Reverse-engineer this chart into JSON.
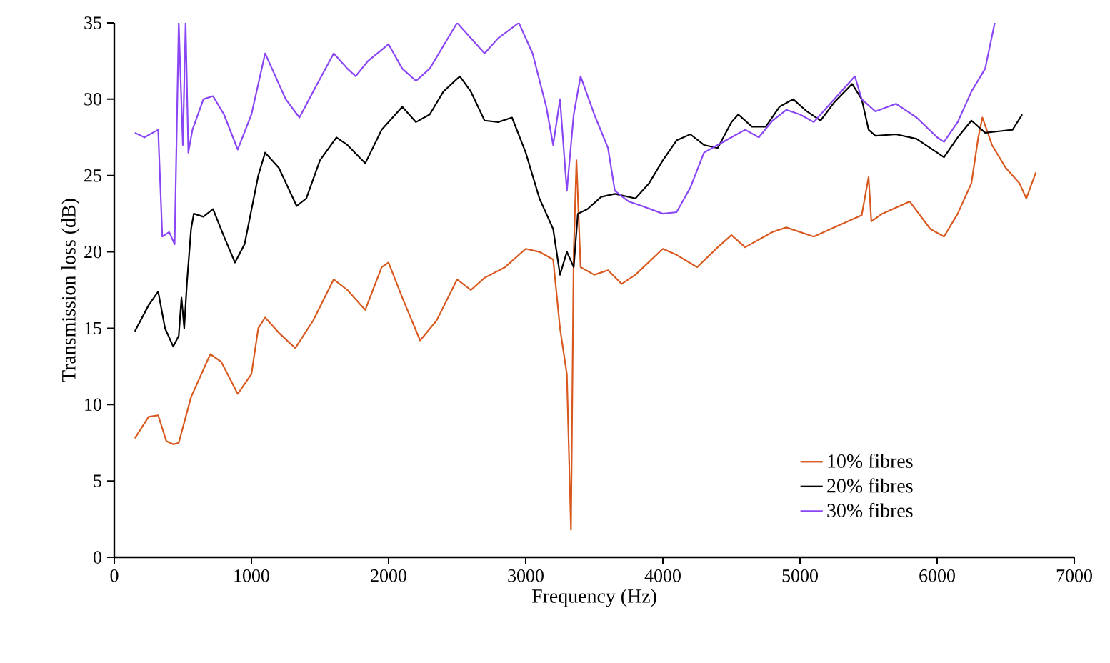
{
  "chart_data": {
    "type": "line",
    "xlabel": "Frequency (Hz)",
    "ylabel": "Transmission loss (dB)",
    "xlim": [
      0,
      7000
    ],
    "xticks": [
      0,
      1000,
      2000,
      3000,
      4000,
      5000,
      6000,
      7000
    ],
    "ylim": [
      0,
      35
    ],
    "yticks": [
      0,
      5,
      10,
      15,
      20,
      25,
      30,
      35
    ],
    "legend": "bottom right",
    "grid": false,
    "marker": "none",
    "line_style": "solid",
    "series": [
      {
        "name": "10% fibres",
        "color": "#d9581e",
        "x": [
          150,
          250,
          320,
          380,
          430,
          470,
          500,
          560,
          700,
          780,
          900,
          1000,
          1050,
          1100,
          1200,
          1320,
          1450,
          1600,
          1700,
          1830,
          1950,
          2000,
          2100,
          2230,
          2350,
          2500,
          2600,
          2700,
          2850,
          3000,
          3100,
          3200,
          3250,
          3300,
          3330,
          3350,
          3370,
          3400,
          3500,
          3600,
          3700,
          3800,
          4000,
          4100,
          4250,
          4400,
          4500,
          4600,
          4800,
          4900,
          5100,
          5300,
          5450,
          5500,
          5520,
          5600,
          5800,
          5950,
          6050,
          6150,
          6250,
          6300,
          6330,
          6400,
          6500,
          6600,
          6650,
          6720
        ],
        "values": [
          7.8,
          9.2,
          9.3,
          7.6,
          7.4,
          7.5,
          8.5,
          10.5,
          13.3,
          12.8,
          10.7,
          12,
          15,
          15.7,
          14.7,
          13.7,
          15.5,
          18.2,
          17.5,
          16.2,
          19,
          19.3,
          17,
          14.2,
          15.5,
          18.2,
          17.5,
          18.3,
          19,
          20.2,
          20,
          19.5,
          15,
          12,
          1.8,
          20,
          26,
          19,
          18.5,
          18.8,
          17.9,
          18.5,
          20.2,
          19.8,
          19,
          20.3,
          21.1,
          20.3,
          21.3,
          21.6,
          21,
          21.8,
          22.4,
          24.9,
          22,
          22.5,
          23.3,
          21.5,
          21,
          22.5,
          24.5,
          27.5,
          28.8,
          27,
          25.5,
          24.5,
          23.5,
          25.2
        ]
      },
      {
        "name": "20% fibres",
        "color": "#000000",
        "x": [
          150,
          250,
          320,
          370,
          430,
          470,
          490,
          510,
          530,
          560,
          580,
          650,
          720,
          800,
          880,
          950,
          1050,
          1100,
          1200,
          1330,
          1400,
          1500,
          1620,
          1700,
          1830,
          1950,
          2100,
          2200,
          2300,
          2400,
          2520,
          2600,
          2700,
          2800,
          2900,
          3000,
          3100,
          3200,
          3250,
          3300,
          3350,
          3380,
          3450,
          3550,
          3650,
          3800,
          3900,
          4000,
          4100,
          4200,
          4300,
          4400,
          4500,
          4550,
          4650,
          4750,
          4850,
          4950,
          5050,
          5150,
          5250,
          5380,
          5450,
          5500,
          5550,
          5700,
          5850,
          6000,
          6050,
          6150,
          6250,
          6350,
          6450,
          6550,
          6620
        ],
        "values": [
          14.8,
          16.5,
          17.4,
          15,
          13.8,
          14.5,
          17,
          15,
          18,
          21.5,
          22.5,
          22.3,
          22.8,
          21,
          19.3,
          20.5,
          25,
          26.5,
          25.5,
          23,
          23.5,
          26,
          27.5,
          27,
          25.8,
          28,
          29.5,
          28.5,
          29,
          30.5,
          31.5,
          30.5,
          28.6,
          28.5,
          28.8,
          26.5,
          23.5,
          21.5,
          18.5,
          20,
          19,
          22.5,
          22.8,
          23.6,
          23.8,
          23.5,
          24.5,
          26,
          27.3,
          27.7,
          27,
          26.8,
          28.5,
          29,
          28.2,
          28.2,
          29.5,
          30,
          29.2,
          28.6,
          29.8,
          31,
          30,
          28,
          27.6,
          27.7,
          27.4,
          26.5,
          26.2,
          27.5,
          28.6,
          27.8,
          27.9,
          28,
          29
        ]
      },
      {
        "name": "30% fibres",
        "color": "#8a45f5",
        "x": [
          150,
          220,
          320,
          350,
          400,
          440,
          470,
          500,
          520,
          540,
          570,
          650,
          720,
          800,
          900,
          1000,
          1100,
          1150,
          1250,
          1350,
          1450,
          1600,
          1700,
          1760,
          1850,
          2000,
          2100,
          2200,
          2300,
          2400,
          2500,
          2600,
          2700,
          2800,
          2950,
          3050,
          3150,
          3200,
          3250,
          3300,
          3350,
          3400,
          3500,
          3600,
          3650,
          3750,
          3850,
          4000,
          4100,
          4200,
          4300,
          4400,
          4500,
          4600,
          4700,
          4800,
          4900,
          5000,
          5100,
          5200,
          5350,
          5400,
          5450,
          5550,
          5700,
          5850,
          6000,
          6050,
          6150,
          6250,
          6350,
          6420
        ],
        "values": [
          27.8,
          27.5,
          28,
          21,
          21.3,
          20.5,
          35,
          27,
          35,
          26.5,
          28,
          30,
          30.2,
          29,
          26.7,
          29,
          33,
          32,
          30,
          28.8,
          30.5,
          33,
          32,
          31.5,
          32.5,
          33.6,
          32,
          31.2,
          32,
          33.5,
          35,
          34,
          33,
          34,
          35,
          33,
          29.5,
          27,
          30,
          24,
          29,
          31.5,
          29,
          26.8,
          24,
          23.3,
          23,
          22.5,
          22.6,
          24.2,
          26.5,
          27,
          27.5,
          28,
          27.5,
          28.6,
          29.3,
          29,
          28.5,
          29.5,
          31,
          31.5,
          30,
          29.2,
          29.7,
          28.8,
          27.5,
          27.2,
          28.5,
          30.5,
          32,
          35
        ]
      }
    ]
  }
}
